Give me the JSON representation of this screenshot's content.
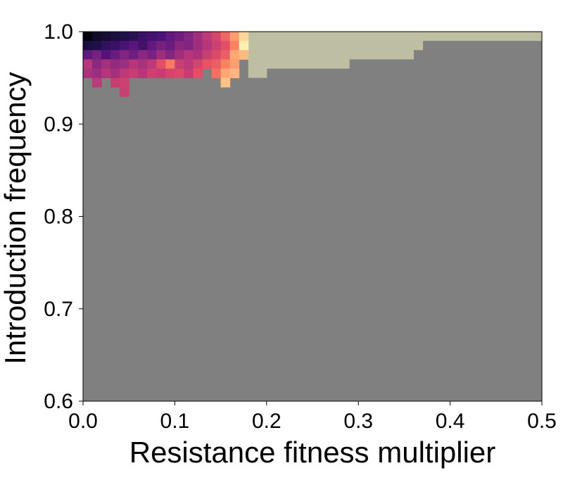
{
  "chart_data": {
    "type": "heatmap",
    "title": "",
    "xlabel": "Resistance fitness multiplier",
    "ylabel": "Introduction frequency",
    "xlim": [
      0.0,
      0.5
    ],
    "ylim": [
      0.6,
      1.0
    ],
    "xticks": [
      0.0,
      0.1,
      0.2,
      0.3,
      0.4,
      0.5
    ],
    "yticks": [
      0.6,
      0.7,
      0.8,
      0.9,
      1.0
    ],
    "xtick_labels": [
      "0.0",
      "0.1",
      "0.2",
      "0.3",
      "0.4",
      "0.5"
    ],
    "ytick_labels": [
      "0.6",
      "0.7",
      "0.8",
      "0.9",
      "1.0"
    ],
    "grid": false,
    "legend": "none",
    "colormap": "magma",
    "cell_width": 0.01,
    "cell_height": 0.01,
    "background_value_color": "#808080",
    "region_color": "#bebea3",
    "region_boundary": [
      {
        "x_start": 0.18,
        "x_end": 0.2,
        "y_low": 0.95
      },
      {
        "x_start": 0.2,
        "x_end": 0.29,
        "y_low": 0.96
      },
      {
        "x_start": 0.29,
        "x_end": 0.36,
        "y_low": 0.97
      },
      {
        "x_start": 0.36,
        "x_end": 0.37,
        "y_low": 0.98
      },
      {
        "x_start": 0.37,
        "x_end": 0.39,
        "y_low": 0.99
      },
      {
        "x_start": 0.39,
        "x_end": 0.5,
        "y_low": 0.99
      }
    ],
    "cells": [
      {
        "x": 0.0,
        "y": 0.99,
        "v": 0.02
      },
      {
        "x": 0.01,
        "y": 0.99,
        "v": 0.08
      },
      {
        "x": 0.02,
        "y": 0.99,
        "v": 0.1
      },
      {
        "x": 0.03,
        "y": 0.99,
        "v": 0.12
      },
      {
        "x": 0.04,
        "y": 0.99,
        "v": 0.14
      },
      {
        "x": 0.05,
        "y": 0.99,
        "v": 0.16
      },
      {
        "x": 0.06,
        "y": 0.99,
        "v": 0.2
      },
      {
        "x": 0.07,
        "y": 0.99,
        "v": 0.22
      },
      {
        "x": 0.08,
        "y": 0.99,
        "v": 0.24
      },
      {
        "x": 0.09,
        "y": 0.99,
        "v": 0.3
      },
      {
        "x": 0.1,
        "y": 0.99,
        "v": 0.33
      },
      {
        "x": 0.11,
        "y": 0.99,
        "v": 0.38
      },
      {
        "x": 0.12,
        "y": 0.99,
        "v": 0.45
      },
      {
        "x": 0.13,
        "y": 0.99,
        "v": 0.52
      },
      {
        "x": 0.14,
        "y": 0.99,
        "v": 0.58
      },
      {
        "x": 0.15,
        "y": 0.99,
        "v": 0.68
      },
      {
        "x": 0.16,
        "y": 0.99,
        "v": 0.8
      },
      {
        "x": 0.17,
        "y": 0.99,
        "v": 0.92
      },
      {
        "x": 0.0,
        "y": 0.98,
        "v": 0.12
      },
      {
        "x": 0.01,
        "y": 0.98,
        "v": 0.14
      },
      {
        "x": 0.02,
        "y": 0.98,
        "v": 0.18
      },
      {
        "x": 0.03,
        "y": 0.98,
        "v": 0.2
      },
      {
        "x": 0.04,
        "y": 0.98,
        "v": 0.24
      },
      {
        "x": 0.05,
        "y": 0.98,
        "v": 0.28
      },
      {
        "x": 0.06,
        "y": 0.98,
        "v": 0.22
      },
      {
        "x": 0.07,
        "y": 0.98,
        "v": 0.3
      },
      {
        "x": 0.08,
        "y": 0.98,
        "v": 0.35
      },
      {
        "x": 0.09,
        "y": 0.98,
        "v": 0.32
      },
      {
        "x": 0.1,
        "y": 0.98,
        "v": 0.4
      },
      {
        "x": 0.11,
        "y": 0.98,
        "v": 0.38
      },
      {
        "x": 0.12,
        "y": 0.98,
        "v": 0.45
      },
      {
        "x": 0.13,
        "y": 0.98,
        "v": 0.5
      },
      {
        "x": 0.14,
        "y": 0.98,
        "v": 0.56
      },
      {
        "x": 0.15,
        "y": 0.98,
        "v": 0.62
      },
      {
        "x": 0.16,
        "y": 0.98,
        "v": 0.74
      },
      {
        "x": 0.17,
        "y": 0.98,
        "v": 0.97
      },
      {
        "x": 0.0,
        "y": 0.97,
        "v": 0.3
      },
      {
        "x": 0.01,
        "y": 0.97,
        "v": 0.35
      },
      {
        "x": 0.02,
        "y": 0.97,
        "v": 0.26
      },
      {
        "x": 0.03,
        "y": 0.97,
        "v": 0.32
      },
      {
        "x": 0.04,
        "y": 0.97,
        "v": 0.38
      },
      {
        "x": 0.05,
        "y": 0.97,
        "v": 0.33
      },
      {
        "x": 0.06,
        "y": 0.97,
        "v": 0.4
      },
      {
        "x": 0.07,
        "y": 0.97,
        "v": 0.36
      },
      {
        "x": 0.08,
        "y": 0.97,
        "v": 0.44
      },
      {
        "x": 0.09,
        "y": 0.97,
        "v": 0.38
      },
      {
        "x": 0.1,
        "y": 0.97,
        "v": 0.45
      },
      {
        "x": 0.11,
        "y": 0.97,
        "v": 0.5
      },
      {
        "x": 0.12,
        "y": 0.97,
        "v": 0.48
      },
      {
        "x": 0.13,
        "y": 0.97,
        "v": 0.55
      },
      {
        "x": 0.14,
        "y": 0.97,
        "v": 0.6
      },
      {
        "x": 0.15,
        "y": 0.97,
        "v": 0.66
      },
      {
        "x": 0.16,
        "y": 0.97,
        "v": 0.82
      },
      {
        "x": 0.17,
        "y": 0.97,
        "v": 0.86
      },
      {
        "x": 0.0,
        "y": 0.96,
        "v": 0.5
      },
      {
        "x": 0.01,
        "y": 0.96,
        "v": 0.4
      },
      {
        "x": 0.02,
        "y": 0.96,
        "v": 0.46
      },
      {
        "x": 0.03,
        "y": 0.96,
        "v": 0.42
      },
      {
        "x": 0.04,
        "y": 0.96,
        "v": 0.44
      },
      {
        "x": 0.05,
        "y": 0.96,
        "v": 0.5
      },
      {
        "x": 0.06,
        "y": 0.96,
        "v": 0.47
      },
      {
        "x": 0.07,
        "y": 0.96,
        "v": 0.52
      },
      {
        "x": 0.08,
        "y": 0.96,
        "v": 0.62
      },
      {
        "x": 0.09,
        "y": 0.96,
        "v": 0.72
      },
      {
        "x": 0.1,
        "y": 0.96,
        "v": 0.55
      },
      {
        "x": 0.11,
        "y": 0.96,
        "v": 0.52
      },
      {
        "x": 0.12,
        "y": 0.96,
        "v": 0.58
      },
      {
        "x": 0.13,
        "y": 0.96,
        "v": 0.64
      },
      {
        "x": 0.14,
        "y": 0.96,
        "v": 0.66
      },
      {
        "x": 0.15,
        "y": 0.96,
        "v": 0.74
      },
      {
        "x": 0.16,
        "y": 0.96,
        "v": 0.8
      },
      {
        "x": 0.0,
        "y": 0.95,
        "v": 0.48
      },
      {
        "x": 0.01,
        "y": 0.95,
        "v": 0.44
      },
      {
        "x": 0.02,
        "y": 0.95,
        "v": 0.5
      },
      {
        "x": 0.03,
        "y": 0.95,
        "v": 0.46
      },
      {
        "x": 0.04,
        "y": 0.95,
        "v": 0.52
      },
      {
        "x": 0.05,
        "y": 0.95,
        "v": 0.54
      },
      {
        "x": 0.06,
        "y": 0.95,
        "v": 0.5
      },
      {
        "x": 0.07,
        "y": 0.95,
        "v": 0.56
      },
      {
        "x": 0.08,
        "y": 0.95,
        "v": 0.54
      },
      {
        "x": 0.09,
        "y": 0.95,
        "v": 0.58
      },
      {
        "x": 0.1,
        "y": 0.95,
        "v": 0.6
      },
      {
        "x": 0.11,
        "y": 0.95,
        "v": 0.54
      },
      {
        "x": 0.12,
        "y": 0.95,
        "v": 0.62
      },
      {
        "x": 0.14,
        "y": 0.95,
        "v": 0.7
      },
      {
        "x": 0.15,
        "y": 0.95,
        "v": 0.82
      },
      {
        "x": 0.16,
        "y": 0.95,
        "v": 0.85
      },
      {
        "x": 0.01,
        "y": 0.94,
        "v": 0.52
      },
      {
        "x": 0.03,
        "y": 0.94,
        "v": 0.54
      },
      {
        "x": 0.04,
        "y": 0.94,
        "v": 0.56
      },
      {
        "x": 0.15,
        "y": 0.94,
        "v": 0.88
      },
      {
        "x": 0.04,
        "y": 0.93,
        "v": 0.55
      }
    ]
  }
}
